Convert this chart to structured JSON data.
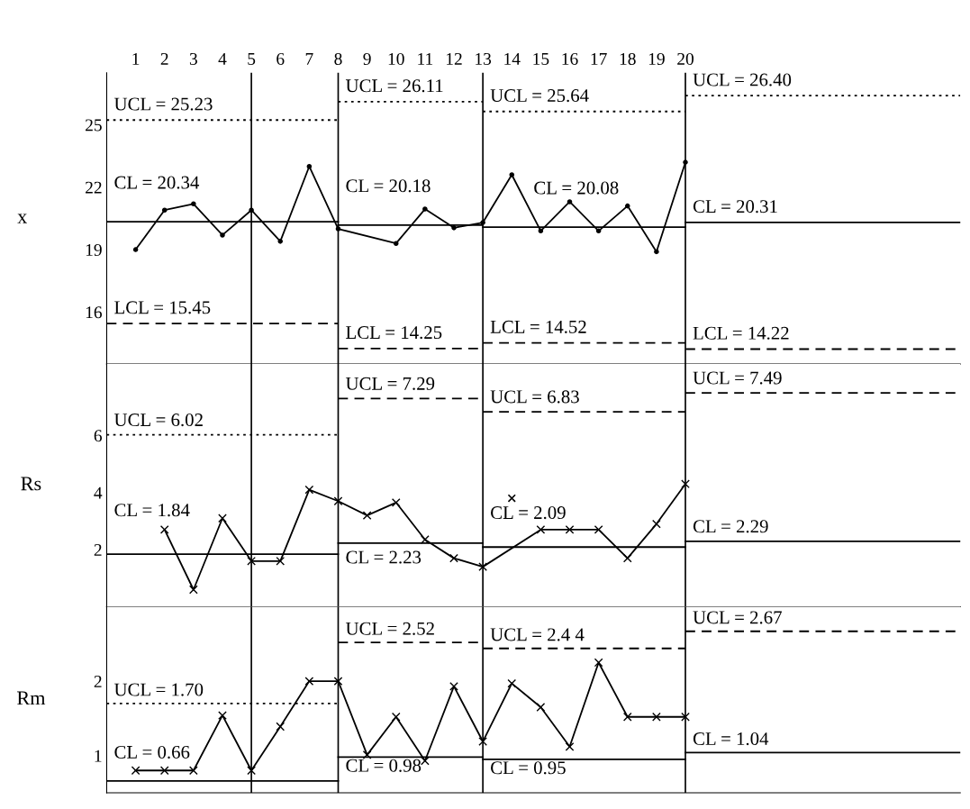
{
  "chart_data": [
    {
      "type": "line",
      "ylabel": "x",
      "xlim": [
        0,
        29.5
      ],
      "xticks": [
        1,
        2,
        3,
        4,
        5,
        6,
        7,
        8,
        9,
        10,
        11,
        12,
        13,
        14,
        15,
        16,
        17,
        18,
        19,
        20
      ],
      "ylim": [
        13.5,
        27.5
      ],
      "yticks": [
        16,
        19,
        22,
        25
      ],
      "grid": false,
      "ref_lines": [
        {
          "axis": "x",
          "value": 5,
          "color": "#000000",
          "line_style": "solid"
        },
        {
          "axis": "x",
          "value": 8,
          "color": "#000000",
          "line_style": "solid"
        },
        {
          "axis": "x",
          "value": 13,
          "color": "#000000",
          "line_style": "solid"
        },
        {
          "axis": "x",
          "value": 20,
          "color": "#000000",
          "line_style": "solid"
        }
      ],
      "series": [
        {
          "x": [
            1,
            2,
            3,
            4,
            5,
            6,
            7,
            8,
            10,
            11,
            12,
            13,
            14,
            15,
            16,
            17,
            18,
            19,
            20
          ],
          "values": [
            19.0,
            20.9,
            21.2,
            19.7,
            20.9,
            19.4,
            23.0,
            20.0,
            19.3,
            20.95,
            20.05,
            20.3,
            22.6,
            19.9,
            21.3,
            19.9,
            21.1,
            18.9,
            23.2
          ],
          "color": "#000000",
          "marker": "circle",
          "line_style": "solid"
        },
        {
          "name": "UCL = 25.23",
          "x": [
            0,
            8
          ],
          "values": [
            25.23,
            25.23
          ],
          "color": "#000000",
          "marker": "none",
          "line_style": "dotted"
        },
        {
          "name": "UCL = 26.11",
          "x": [
            8,
            13
          ],
          "values": [
            26.11,
            26.11
          ],
          "color": "#000000",
          "marker": "none",
          "line_style": "dotted"
        },
        {
          "name": "UCL = 25.64",
          "x": [
            13,
            20
          ],
          "values": [
            25.64,
            25.64
          ],
          "color": "#000000",
          "marker": "none",
          "line_style": "dotted"
        },
        {
          "name": "UCL = 26.40",
          "x": [
            20,
            29.5
          ],
          "values": [
            26.4,
            26.4
          ],
          "color": "#000000",
          "marker": "none",
          "line_style": "dotted"
        },
        {
          "name": "CL = 20.34",
          "x": [
            0,
            8
          ],
          "values": [
            20.34,
            20.34
          ],
          "color": "#000000",
          "marker": "none",
          "line_style": "solid"
        },
        {
          "name": "CL = 20.18",
          "x": [
            8,
            13
          ],
          "values": [
            20.18,
            20.18
          ],
          "color": "#000000",
          "marker": "none",
          "line_style": "solid"
        },
        {
          "name": "CL = 20.08",
          "x": [
            13,
            20
          ],
          "values": [
            20.08,
            20.08
          ],
          "color": "#000000",
          "marker": "none",
          "line_style": "solid"
        },
        {
          "name": "CL = 20.31",
          "x": [
            20,
            29.5
          ],
          "values": [
            20.31,
            20.31
          ],
          "color": "#000000",
          "marker": "none",
          "line_style": "solid"
        },
        {
          "name": "LCL = 15.45",
          "x": [
            0,
            8
          ],
          "values": [
            15.45,
            15.45
          ],
          "color": "#000000",
          "marker": "none",
          "line_style": "dashed"
        },
        {
          "name": "LCL = 14.25",
          "x": [
            8,
            13
          ],
          "values": [
            14.25,
            14.25
          ],
          "color": "#000000",
          "marker": "none",
          "line_style": "dashed"
        },
        {
          "name": "LCL = 14.52",
          "x": [
            13,
            20
          ],
          "values": [
            14.52,
            14.52
          ],
          "color": "#000000",
          "marker": "none",
          "line_style": "dashed"
        },
        {
          "name": "LCL = 14.22",
          "x": [
            20,
            29.5
          ],
          "values": [
            14.22,
            14.22
          ],
          "color": "#000000",
          "marker": "none",
          "line_style": "dashed"
        }
      ]
    },
    {
      "type": "line",
      "ylabel": "Rs",
      "xlim": [
        0,
        29.5
      ],
      "ylim": [
        0,
        8.5
      ],
      "yticks": [
        2,
        4,
        6
      ],
      "tick_labels": "y",
      "grid": false,
      "ref_lines": [
        {
          "axis": "x",
          "value": 5,
          "color": "#000000",
          "line_style": "solid"
        },
        {
          "axis": "x",
          "value": 8,
          "color": "#000000",
          "line_style": "solid"
        },
        {
          "axis": "x",
          "value": 13,
          "color": "#000000",
          "line_style": "solid"
        },
        {
          "axis": "x",
          "value": 20,
          "color": "#000000",
          "line_style": "solid"
        }
      ],
      "series": [
        {
          "x": [
            2,
            3,
            4,
            5,
            6,
            7,
            8,
            9,
            10,
            11,
            12,
            13,
            15,
            16,
            17,
            18,
            19,
            20
          ],
          "values": [
            2.7,
            0.6,
            3.1,
            1.6,
            1.6,
            4.1,
            3.7,
            3.2,
            3.65,
            2.35,
            1.7,
            1.4,
            2.7,
            2.7,
            2.7,
            1.7,
            2.9,
            4.3
          ],
          "color": "#000000",
          "marker": "cross",
          "line_style": "solid"
        },
        {
          "type": "scatter",
          "x": [
            14
          ],
          "values": [
            3.8
          ],
          "color": "#000000",
          "marker": "cross"
        },
        {
          "name": "UCL = 6.02",
          "x": [
            0,
            8
          ],
          "values": [
            6.02,
            6.02
          ],
          "color": "#000000",
          "marker": "none",
          "line_style": "dotted"
        },
        {
          "name": "UCL = 7.29",
          "x": [
            8,
            13
          ],
          "values": [
            7.29,
            7.29
          ],
          "color": "#000000",
          "marker": "none",
          "line_style": "dashed"
        },
        {
          "name": "UCL = 6.83",
          "x": [
            13,
            20
          ],
          "values": [
            6.83,
            6.83
          ],
          "color": "#000000",
          "marker": "none",
          "line_style": "dashed"
        },
        {
          "name": "UCL = 7.49",
          "x": [
            20,
            29.5
          ],
          "values": [
            7.49,
            7.49
          ],
          "color": "#000000",
          "marker": "none",
          "line_style": "dashed"
        },
        {
          "name": "CL = 1.84",
          "x": [
            0,
            8
          ],
          "values": [
            1.84,
            1.84
          ],
          "color": "#000000",
          "marker": "none",
          "line_style": "solid"
        },
        {
          "name": "CL = 2.23",
          "x": [
            8,
            13
          ],
          "values": [
            2.23,
            2.23
          ],
          "color": "#000000",
          "marker": "none",
          "line_style": "solid"
        },
        {
          "name": "CL = 2.09",
          "x": [
            13,
            20
          ],
          "values": [
            2.09,
            2.09
          ],
          "color": "#000000",
          "marker": "none",
          "line_style": "solid"
        },
        {
          "name": "CL = 2.29",
          "x": [
            20,
            29.5
          ],
          "values": [
            2.29,
            2.29
          ],
          "color": "#000000",
          "marker": "none",
          "line_style": "solid"
        }
      ]
    },
    {
      "type": "line",
      "ylabel": "Rm",
      "xlim": [
        0,
        29.5
      ],
      "ylim": [
        0.5,
        3.0
      ],
      "yticks": [
        1,
        2
      ],
      "tick_labels": "y",
      "grid": false,
      "ref_lines": [
        {
          "axis": "x",
          "value": 5,
          "color": "#000000",
          "line_style": "solid"
        },
        {
          "axis": "x",
          "value": 8,
          "color": "#000000",
          "line_style": "solid"
        },
        {
          "axis": "x",
          "value": 13,
          "color": "#000000",
          "line_style": "solid"
        },
        {
          "axis": "x",
          "value": 20,
          "color": "#000000",
          "line_style": "solid"
        }
      ],
      "series": [
        {
          "x": [
            1,
            2,
            3,
            4,
            5,
            6,
            7,
            8,
            9,
            10,
            11,
            12,
            13,
            14,
            15,
            16,
            17,
            18,
            19,
            20
          ],
          "values": [
            0.8,
            0.8,
            0.8,
            1.54,
            0.8,
            1.39,
            2.0,
            2.0,
            1.01,
            1.52,
            0.93,
            1.93,
            1.19,
            1.97,
            1.65,
            1.12,
            2.25,
            1.52,
            1.52,
            1.52
          ],
          "color": "#000000",
          "marker": "cross",
          "line_style": "solid"
        },
        {
          "name": "UCL = 1.70",
          "x": [
            0,
            8
          ],
          "values": [
            1.7,
            1.7
          ],
          "color": "#000000",
          "marker": "none",
          "line_style": "dotted"
        },
        {
          "name": "UCL = 2.52",
          "x": [
            8,
            13
          ],
          "values": [
            2.52,
            2.52
          ],
          "color": "#000000",
          "marker": "none",
          "line_style": "dashed"
        },
        {
          "name": "UCL = 2.4 4",
          "x": [
            13,
            20
          ],
          "values": [
            2.44,
            2.44
          ],
          "color": "#000000",
          "marker": "none",
          "line_style": "dashed"
        },
        {
          "name": "UCL = 2.67",
          "x": [
            20,
            29.5
          ],
          "values": [
            2.67,
            2.67
          ],
          "color": "#000000",
          "marker": "none",
          "line_style": "dashed"
        },
        {
          "name": "CL = 0.66",
          "x": [
            0,
            8
          ],
          "values": [
            0.66,
            0.66
          ],
          "color": "#000000",
          "marker": "none",
          "line_style": "solid"
        },
        {
          "name": "CL = 0.98",
          "x": [
            8,
            13
          ],
          "values": [
            0.98,
            0.98
          ],
          "color": "#000000",
          "marker": "none",
          "line_style": "solid"
        },
        {
          "name": "CL = 0.95",
          "x": [
            13,
            20
          ],
          "values": [
            0.95,
            0.95
          ],
          "color": "#000000",
          "marker": "none",
          "line_style": "solid"
        },
        {
          "name": "CL = 1.04",
          "x": [
            20,
            29.5
          ],
          "values": [
            1.04,
            1.04
          ],
          "color": "#000000",
          "marker": "none",
          "line_style": "solid"
        }
      ]
    }
  ]
}
